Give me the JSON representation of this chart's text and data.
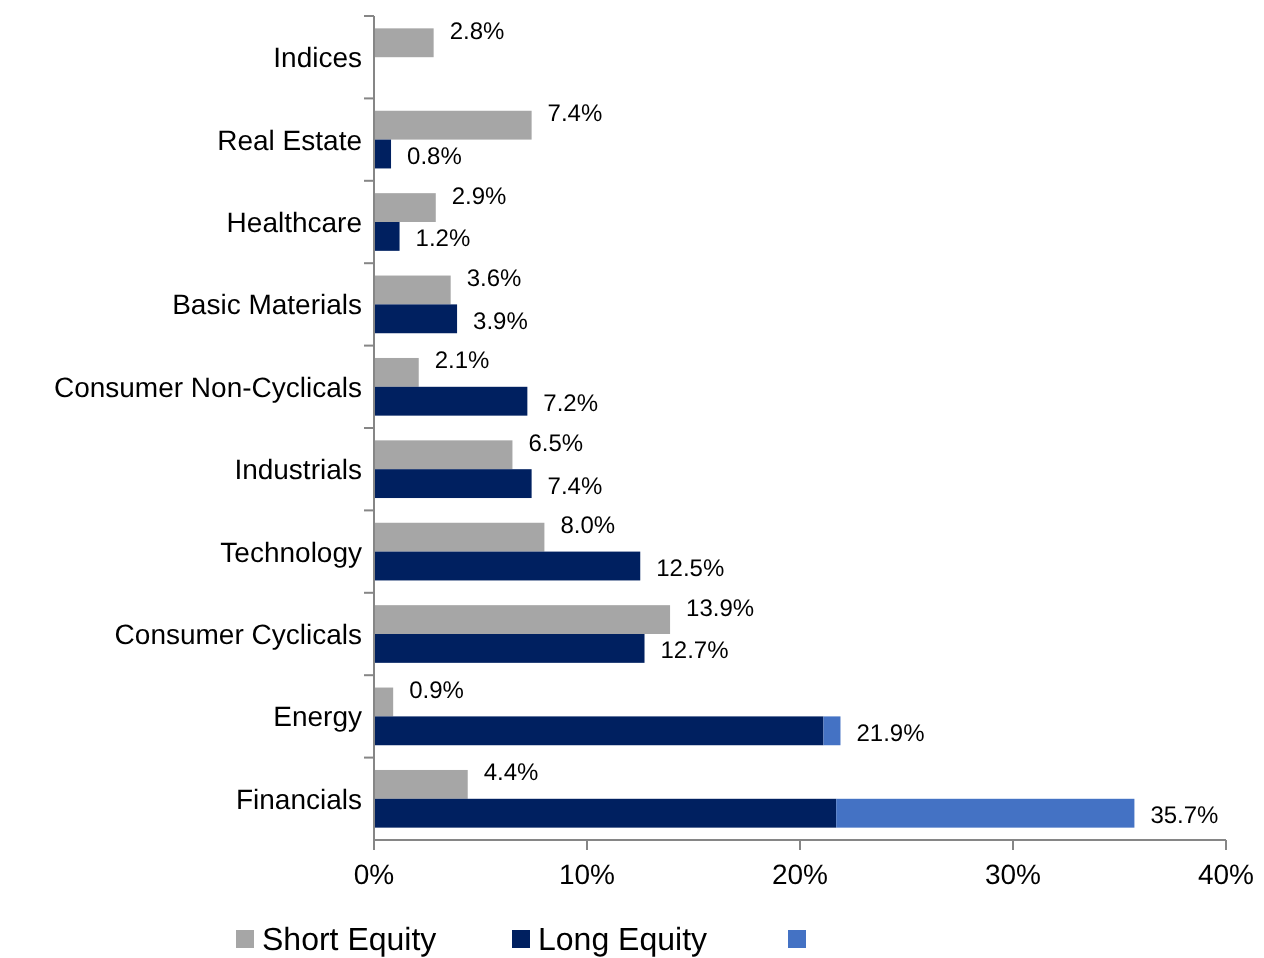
{
  "chart_data": {
    "type": "bar",
    "orientation": "horizontal",
    "categories": [
      "Indices",
      "Real Estate",
      "Healthcare",
      "Basic Materials",
      "Consumer Non-Cyclicals",
      "Industrials",
      "Technology",
      "Consumer Cyclicals",
      "Energy",
      "Financials"
    ],
    "series": [
      {
        "name": "Short Equity",
        "color": "#a6a6a6",
        "values": [
          2.8,
          7.4,
          2.9,
          3.6,
          2.1,
          6.5,
          8.0,
          13.9,
          0.9,
          4.4
        ],
        "value_labels": [
          "2.8%",
          "7.4%",
          "2.9%",
          "3.6%",
          "2.1%",
          "6.5%",
          "8.0%",
          "13.9%",
          "0.9%",
          "4.4%"
        ]
      },
      {
        "name": "Long Equity",
        "color": "#002060",
        "values": [
          null,
          0.8,
          1.2,
          3.9,
          7.2,
          7.4,
          12.5,
          12.7,
          21.1,
          21.7
        ],
        "value_labels": [
          null,
          "0.8%",
          "1.2%",
          "3.9%",
          "7.2%",
          "7.4%",
          "12.5%",
          "12.7%",
          null,
          null
        ]
      },
      {
        "color": "#4472c4",
        "base": [
          null,
          null,
          null,
          null,
          null,
          null,
          null,
          null,
          21.1,
          21.7
        ],
        "values": [
          null,
          null,
          null,
          null,
          null,
          null,
          null,
          null,
          0.8,
          14.0
        ],
        "value_labels": [
          null,
          null,
          null,
          null,
          null,
          null,
          null,
          null,
          "21.9%",
          "35.7%"
        ]
      }
    ],
    "xlim": [
      0,
      40
    ],
    "xticks": [
      {
        "value": 0,
        "label": "0%"
      },
      {
        "value": 10,
        "label": "10%"
      },
      {
        "value": 20,
        "label": "20%"
      },
      {
        "value": 30,
        "label": "30%"
      },
      {
        "value": 40,
        "label": "40%"
      }
    ],
    "grid": false,
    "legend": "bottom"
  }
}
